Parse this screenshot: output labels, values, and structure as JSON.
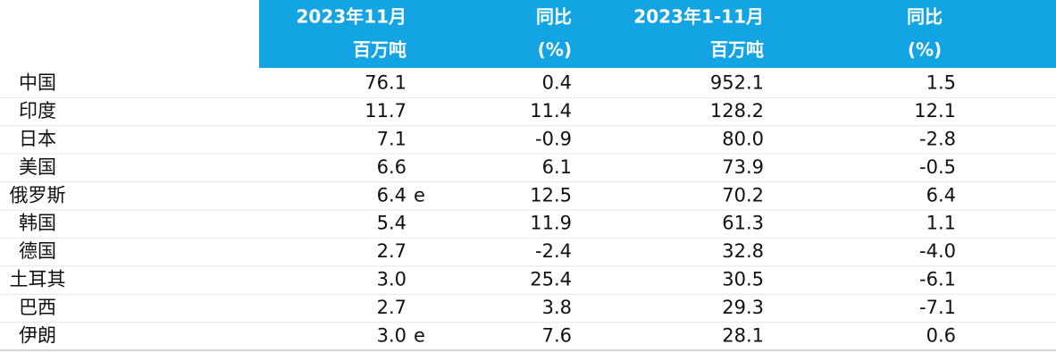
{
  "table": {
    "header": [
      [
        "2023年11月",
        "百万吨"
      ],
      [
        "同比",
        "(%)"
      ],
      [
        "2023年1-11月",
        "百万吨"
      ],
      [
        "同比",
        "(%)"
      ]
    ],
    "rows": [
      {
        "country": "中国",
        "cells": [
          "76.1",
          "0.4",
          "952.1",
          "1.5"
        ]
      },
      {
        "country": "印度",
        "cells": [
          "11.7",
          "11.4",
          "128.2",
          "12.1"
        ]
      },
      {
        "country": "日本",
        "cells": [
          "7.1",
          "-0.9",
          "80.0",
          "-2.8"
        ]
      },
      {
        "country": "美国",
        "cells": [
          "6.6",
          "6.1",
          "73.9",
          "-0.5"
        ]
      },
      {
        "country": "俄罗斯",
        "cells": [
          "6.4",
          "12.5",
          "70.2",
          "6.4"
        ],
        "note": "e"
      },
      {
        "country": "韩国",
        "cells": [
          "5.4",
          "11.9",
          "61.3",
          "1.1"
        ]
      },
      {
        "country": "德国",
        "cells": [
          "2.7",
          "-2.4",
          "32.8",
          "-4.0"
        ]
      },
      {
        "country": "土耳其",
        "cells": [
          "3.0",
          "25.4",
          "30.5",
          "-6.1"
        ]
      },
      {
        "country": "巴西",
        "cells": [
          "2.7",
          "3.8",
          "29.3",
          "-7.1"
        ]
      },
      {
        "country": "伊朗",
        "cells": [
          "3.0",
          "7.6",
          "28.1",
          "0.6"
        ],
        "note": "e"
      }
    ]
  }
}
